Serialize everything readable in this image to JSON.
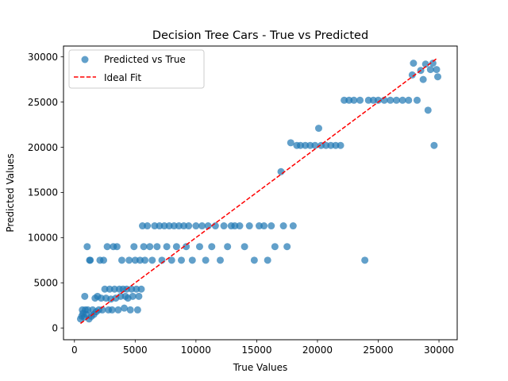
{
  "chart_data": {
    "type": "scatter",
    "title": "Decision Tree Cars - True vs Predicted",
    "xlabel": "True Values",
    "ylabel": "Predicted Values",
    "xlim": [
      -900,
      31500
    ],
    "ylim": [
      -1300,
      31200
    ],
    "xticks": [
      0,
      5000,
      10000,
      15000,
      20000,
      25000,
      30000
    ],
    "xtick_labels": [
      "0",
      "5000",
      "10000",
      "15000",
      "20000",
      "25000",
      "30000"
    ],
    "yticks": [
      0,
      5000,
      10000,
      15000,
      20000,
      25000,
      30000
    ],
    "ytick_labels": [
      "0",
      "5000",
      "10000",
      "15000",
      "20000",
      "25000",
      "30000"
    ],
    "grid": false,
    "legend_position": "upper-left",
    "series": [
      {
        "name": "Predicted vs True",
        "kind": "scatter",
        "color": "#1f77b4",
        "alpha": 0.7,
        "points": [
          [
            500,
            1000
          ],
          [
            600,
            1300
          ],
          [
            650,
            2000
          ],
          [
            700,
            1600
          ],
          [
            800,
            1200
          ],
          [
            850,
            3500
          ],
          [
            900,
            2000
          ],
          [
            1000,
            1500
          ],
          [
            1050,
            9000
          ],
          [
            1100,
            2000
          ],
          [
            1200,
            1000
          ],
          [
            1250,
            7500
          ],
          [
            1300,
            7500
          ],
          [
            1400,
            1300
          ],
          [
            1500,
            2000
          ],
          [
            1600,
            1500
          ],
          [
            1700,
            3300
          ],
          [
            1800,
            1800
          ],
          [
            1900,
            3500
          ],
          [
            2000,
            2000
          ],
          [
            2100,
            7500
          ],
          [
            2200,
            3300
          ],
          [
            2300,
            2000
          ],
          [
            2400,
            7500
          ],
          [
            2500,
            4300
          ],
          [
            2600,
            3300
          ],
          [
            2700,
            9000
          ],
          [
            2800,
            2000
          ],
          [
            2900,
            4300
          ],
          [
            3000,
            3200
          ],
          [
            3100,
            2000
          ],
          [
            3200,
            9000
          ],
          [
            3300,
            4300
          ],
          [
            3400,
            3300
          ],
          [
            3500,
            9000
          ],
          [
            3600,
            2000
          ],
          [
            3700,
            4300
          ],
          [
            3800,
            3500
          ],
          [
            3900,
            7500
          ],
          [
            4000,
            4300
          ],
          [
            4100,
            2200
          ],
          [
            4200,
            3500
          ],
          [
            4300,
            4300
          ],
          [
            4400,
            3300
          ],
          [
            4500,
            7500
          ],
          [
            4600,
            2000
          ],
          [
            4700,
            4300
          ],
          [
            4800,
            3500
          ],
          [
            4900,
            9000
          ],
          [
            5000,
            7500
          ],
          [
            5100,
            4300
          ],
          [
            5200,
            2000
          ],
          [
            5300,
            3500
          ],
          [
            5400,
            7500
          ],
          [
            5500,
            4300
          ],
          [
            5600,
            11300
          ],
          [
            5700,
            9000
          ],
          [
            5800,
            7500
          ],
          [
            6000,
            11300
          ],
          [
            6200,
            9000
          ],
          [
            6400,
            7500
          ],
          [
            6600,
            11300
          ],
          [
            6800,
            9000
          ],
          [
            7000,
            11300
          ],
          [
            7200,
            7500
          ],
          [
            7400,
            11300
          ],
          [
            7600,
            9000
          ],
          [
            7800,
            11300
          ],
          [
            8000,
            7500
          ],
          [
            8200,
            11300
          ],
          [
            8400,
            9000
          ],
          [
            8600,
            11300
          ],
          [
            8800,
            7500
          ],
          [
            9000,
            11300
          ],
          [
            9200,
            9000
          ],
          [
            9400,
            11300
          ],
          [
            9700,
            7500
          ],
          [
            10000,
            11300
          ],
          [
            10300,
            9000
          ],
          [
            10500,
            11300
          ],
          [
            10800,
            7500
          ],
          [
            11000,
            11300
          ],
          [
            11300,
            9000
          ],
          [
            11600,
            11300
          ],
          [
            12000,
            7500
          ],
          [
            12300,
            11300
          ],
          [
            12600,
            9000
          ],
          [
            12900,
            11300
          ],
          [
            13200,
            11300
          ],
          [
            13600,
            11300
          ],
          [
            14000,
            9000
          ],
          [
            14400,
            11300
          ],
          [
            14800,
            7500
          ],
          [
            15200,
            11300
          ],
          [
            15600,
            11300
          ],
          [
            15900,
            7500
          ],
          [
            16200,
            11300
          ],
          [
            16500,
            9000
          ],
          [
            17000,
            17300
          ],
          [
            17200,
            11300
          ],
          [
            17500,
            9000
          ],
          [
            17800,
            20500
          ],
          [
            18000,
            11300
          ],
          [
            18300,
            20200
          ],
          [
            18600,
            20200
          ],
          [
            19000,
            20200
          ],
          [
            19400,
            20200
          ],
          [
            19800,
            20200
          ],
          [
            20100,
            22100
          ],
          [
            20300,
            20200
          ],
          [
            20700,
            20200
          ],
          [
            21100,
            20200
          ],
          [
            21500,
            20200
          ],
          [
            21900,
            20200
          ],
          [
            22200,
            25200
          ],
          [
            22600,
            25200
          ],
          [
            23000,
            25200
          ],
          [
            23500,
            25200
          ],
          [
            23900,
            7500
          ],
          [
            24200,
            25200
          ],
          [
            24600,
            25200
          ],
          [
            25000,
            25200
          ],
          [
            25500,
            25200
          ],
          [
            26000,
            25200
          ],
          [
            26500,
            25200
          ],
          [
            27000,
            25200
          ],
          [
            27500,
            25200
          ],
          [
            27800,
            28000
          ],
          [
            27900,
            29300
          ],
          [
            28200,
            25200
          ],
          [
            28500,
            28500
          ],
          [
            28700,
            27500
          ],
          [
            28900,
            29200
          ],
          [
            29100,
            24100
          ],
          [
            29300,
            28600
          ],
          [
            29500,
            29300
          ],
          [
            29600,
            20200
          ],
          [
            29800,
            28600
          ],
          [
            29900,
            27800
          ]
        ]
      },
      {
        "name": "Ideal Fit",
        "kind": "line",
        "style": "dashed",
        "color": "#ff0000",
        "x": [
          500,
          29800
        ],
        "y": [
          500,
          29800
        ]
      }
    ]
  }
}
